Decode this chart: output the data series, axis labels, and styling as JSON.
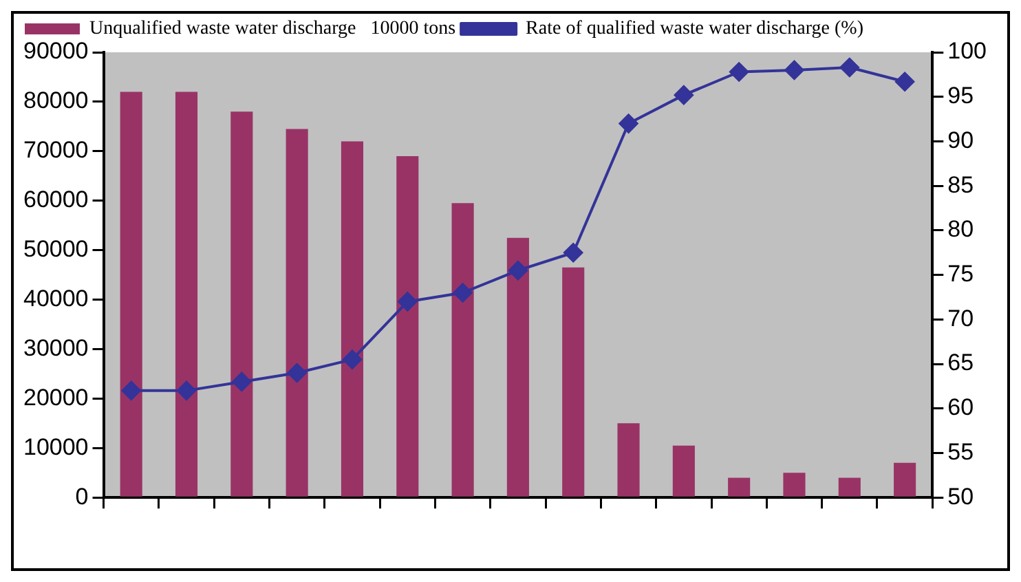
{
  "chart_data": {
    "type": "bar",
    "categories": [
      null,
      null,
      null,
      null,
      null,
      null,
      null,
      null,
      null,
      null,
      null,
      null,
      null,
      null,
      null
    ],
    "series": [
      {
        "name": "Unqualified waste water discharge   10000 tons",
        "color": "#993366",
        "values": [
          82000,
          82000,
          78000,
          74500,
          72000,
          69000,
          59500,
          52500,
          46500,
          15000,
          10500,
          4000,
          5000,
          4000,
          7000
        ]
      },
      {
        "name": "Rate of qualified waste water discharge (%)",
        "type": "line",
        "axis": "y2",
        "color": "#333399",
        "marker": "diamond",
        "values": [
          62,
          62,
          63,
          64,
          65.5,
          72,
          73,
          75.5,
          77.5,
          92,
          95.2,
          97.8,
          98,
          98.3,
          96.7
        ]
      }
    ],
    "ylim": [
      0,
      90000
    ],
    "yticks": [
      0,
      10000,
      20000,
      30000,
      40000,
      50000,
      60000,
      70000,
      80000,
      90000
    ],
    "y2lim": [
      50,
      100
    ],
    "y2ticks": [
      50,
      55,
      60,
      65,
      70,
      75,
      80,
      85,
      90,
      95,
      100
    ],
    "grid": false,
    "legend": "top left"
  }
}
